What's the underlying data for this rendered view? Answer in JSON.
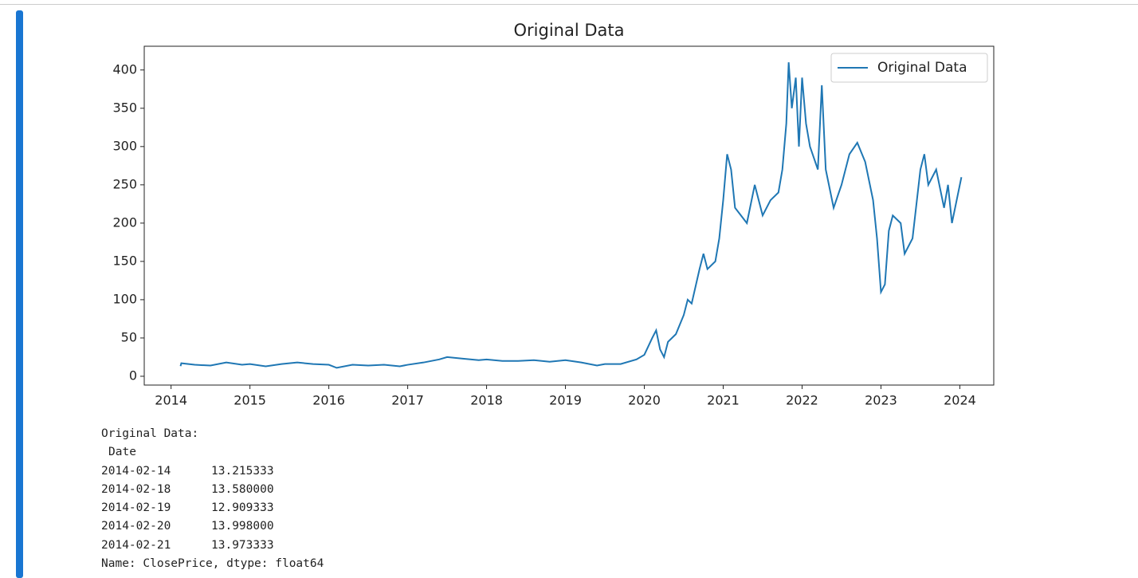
{
  "chart_data": {
    "type": "line",
    "title": "Original Data",
    "x": [
      2014.12,
      2014.13,
      2014.3,
      2014.5,
      2014.7,
      2014.9,
      2015.0,
      2015.2,
      2015.4,
      2015.6,
      2015.8,
      2016.0,
      2016.1,
      2016.3,
      2016.5,
      2016.7,
      2016.9,
      2017.0,
      2017.2,
      2017.4,
      2017.5,
      2017.7,
      2017.9,
      2018.0,
      2018.2,
      2018.4,
      2018.6,
      2018.8,
      2019.0,
      2019.2,
      2019.4,
      2019.5,
      2019.7,
      2019.9,
      2020.0,
      2020.1,
      2020.15,
      2020.2,
      2020.25,
      2020.3,
      2020.4,
      2020.5,
      2020.55,
      2020.6,
      2020.7,
      2020.75,
      2020.8,
      2020.9,
      2020.95,
      2021.0,
      2021.05,
      2021.1,
      2021.15,
      2021.3,
      2021.4,
      2021.5,
      2021.6,
      2021.7,
      2021.75,
      2021.8,
      2021.83,
      2021.87,
      2021.92,
      2021.96,
      2022.0,
      2022.05,
      2022.1,
      2022.2,
      2022.25,
      2022.3,
      2022.4,
      2022.5,
      2022.6,
      2022.7,
      2022.8,
      2022.9,
      2022.95,
      2023.0,
      2023.05,
      2023.1,
      2023.15,
      2023.25,
      2023.3,
      2023.4,
      2023.5,
      2023.55,
      2023.6,
      2023.7,
      2023.8,
      2023.85,
      2023.9,
      2024.0,
      2024.02
    ],
    "series": [
      {
        "name": "Original Data",
        "color": "#1f77b4",
        "values": [
          13.2,
          17,
          15,
          14,
          18,
          15,
          16,
          13,
          16,
          18,
          16,
          15,
          11,
          15,
          14,
          15,
          13,
          15,
          18,
          22,
          25,
          23,
          21,
          22,
          20,
          20,
          21,
          19,
          21,
          18,
          14,
          16,
          16,
          22,
          28,
          50,
          60,
          35,
          25,
          45,
          55,
          80,
          100,
          95,
          140,
          160,
          140,
          150,
          180,
          230,
          290,
          270,
          220,
          200,
          250,
          210,
          230,
          240,
          270,
          330,
          410,
          350,
          390,
          300,
          390,
          330,
          300,
          270,
          380,
          270,
          220,
          250,
          290,
          305,
          280,
          230,
          180,
          110,
          120,
          190,
          210,
          200,
          160,
          180,
          270,
          290,
          250,
          270,
          220,
          250,
          200,
          250,
          260
        ]
      }
    ],
    "xlim": [
      2013.66,
      2024.43
    ],
    "xticks": [
      2014,
      2015,
      2016,
      2017,
      2018,
      2019,
      2020,
      2021,
      2022,
      2023,
      2024
    ],
    "ylim": [
      -11.5,
      431
    ],
    "yticks": [
      0,
      50,
      100,
      150,
      200,
      250,
      300,
      350,
      400
    ],
    "grid": false,
    "legend": "upper right"
  },
  "output": {
    "heading": "Original Data:",
    "index_name": "Date",
    "rows": [
      [
        "2014-02-14",
        "13.215333"
      ],
      [
        "2014-02-18",
        "13.580000"
      ],
      [
        "2014-02-19",
        "12.909333"
      ],
      [
        "2014-02-20",
        "13.998000"
      ],
      [
        "2014-02-21",
        "13.973333"
      ]
    ],
    "footer": "Name: ClosePrice, dtype: float64"
  }
}
